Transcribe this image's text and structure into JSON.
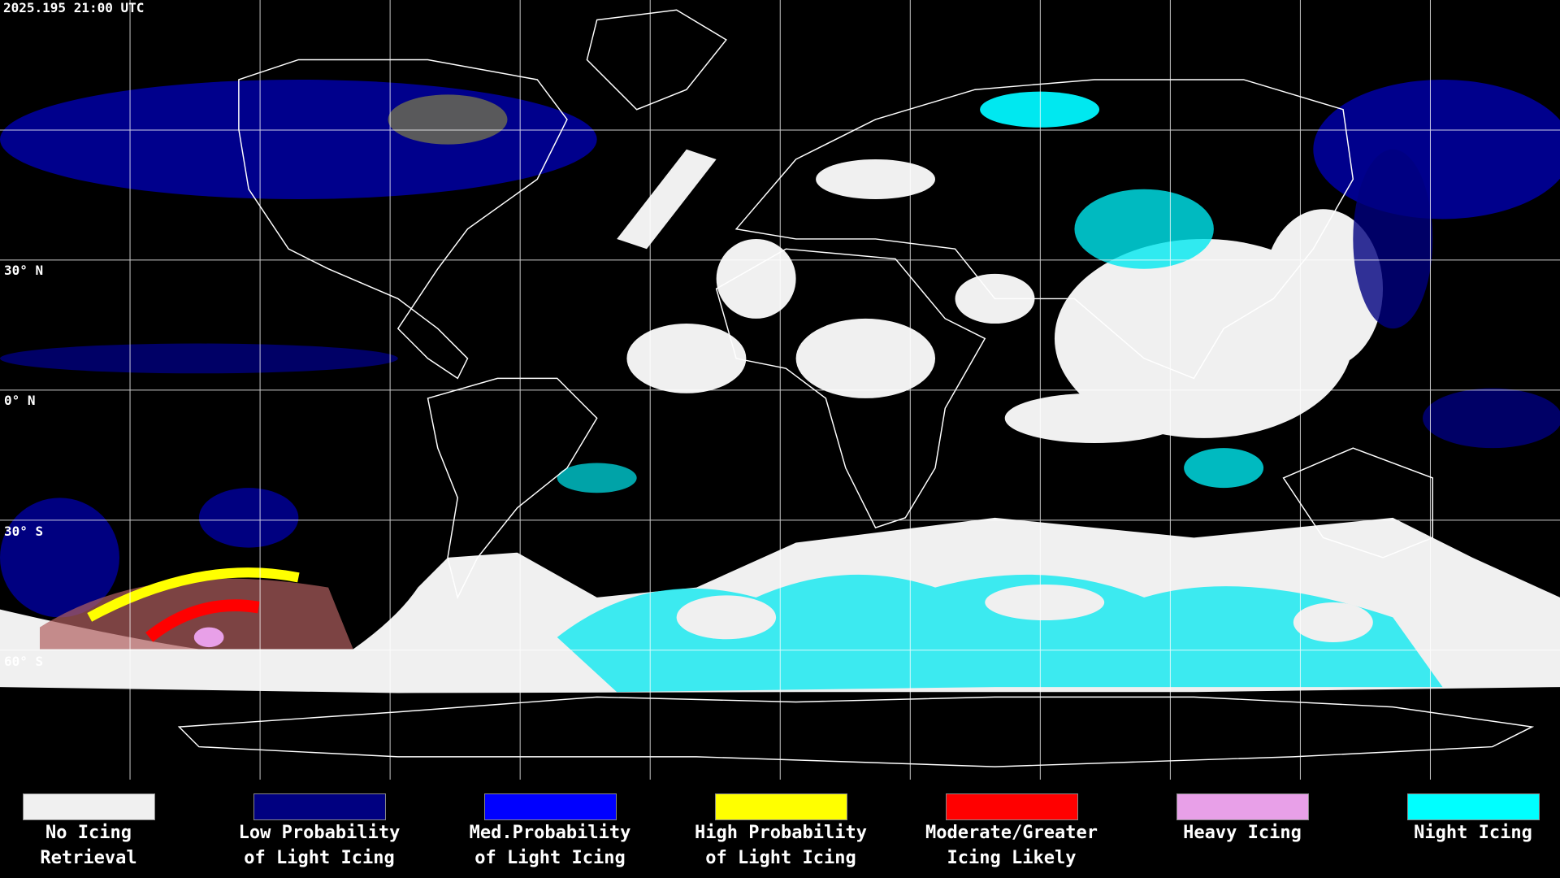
{
  "timestamp": "2025.195 21:00 UTC",
  "latitude_labels": [
    "30° N",
    "0° N",
    "30° S",
    "60° S"
  ],
  "legend": [
    {
      "lines": [
        "No Icing",
        "Retrieval"
      ],
      "color": "#f0f0f0"
    },
    {
      "lines": [
        "Low Probability",
        "of Light Icing"
      ],
      "color": "#000080"
    },
    {
      "lines": [
        "Med.Probability",
        "of Light Icing"
      ],
      "color": "#0000ff"
    },
    {
      "lines": [
        "High Probability",
        "of Light Icing"
      ],
      "color": "#ffff00"
    },
    {
      "lines": [
        "Moderate/Greater",
        "Icing Likely"
      ],
      "color": "#ff0000"
    },
    {
      "lines": [
        "Heavy Icing"
      ],
      "color": "#e8a0e8"
    },
    {
      "lines": [
        "Night Icing"
      ],
      "color": "#00ffff"
    }
  ]
}
